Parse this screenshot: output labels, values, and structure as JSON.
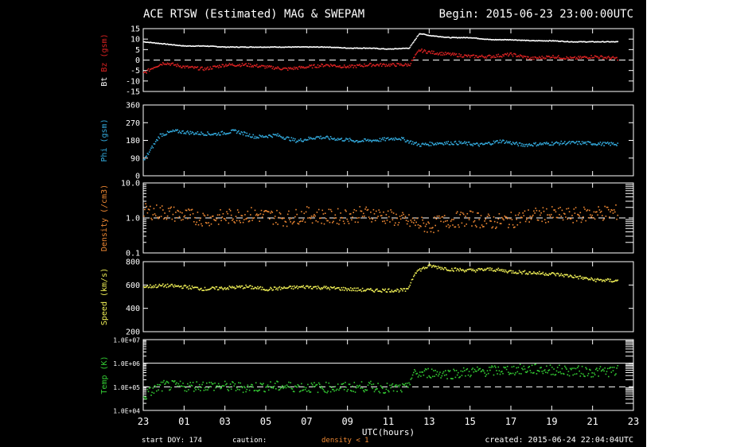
{
  "header": {
    "title": "ACE RTSW (Estimated) MAG & SWEPAM",
    "begin": "Begin: 2015-06-23 23:00:00UTC"
  },
  "footer": {
    "start_doy": "start DOY: 174",
    "caution": "caution:",
    "density_note": "density < 1",
    "created": "created: 2015-06-24 22:04:04UTC",
    "xlabel": "UTC(hours)"
  },
  "colors": {
    "bt": "#ffffff",
    "bz": "#dd2222",
    "phi": "#33aadd",
    "density": "#ee8833",
    "speed": "#eeee55",
    "temp": "#33cc33",
    "axes": "#ffffff",
    "background": "#000000"
  },
  "chart_data": {
    "type": "scatter",
    "x_ticks": [
      "23",
      "01",
      "03",
      "05",
      "07",
      "09",
      "11",
      "13",
      "15",
      "17",
      "19",
      "21",
      "23"
    ],
    "x_range_hours": [
      0,
      24
    ],
    "panels": [
      {
        "id": "bt-bz",
        "ylabel_parts": [
          "Bt",
          "Bz",
          "(gsm)"
        ],
        "ytick_labels": [
          "15",
          "10",
          "5",
          "0",
          "-5",
          "-10",
          "-15"
        ],
        "ylim": [
          -15,
          15
        ],
        "scale": "linear",
        "dashed_at": 0,
        "series": [
          {
            "name": "Bt",
            "color": "#ffffff",
            "x": [
              0,
              1,
              2,
              3,
              4,
              5,
              6,
              7,
              8,
              9,
              10,
              11,
              12,
              13,
              13.5,
              14,
              15,
              16,
              17,
              18,
              19,
              20,
              21,
              22,
              23.2
            ],
            "y": [
              9,
              8,
              7,
              7,
              6.5,
              6.5,
              6.5,
              6.5,
              6.5,
              6.5,
              6,
              6,
              5.5,
              6,
              13,
              12,
              11,
              11,
              10,
              10,
              9.5,
              9.5,
              9,
              9,
              9
            ]
          },
          {
            "name": "Bz",
            "color": "#dd2222",
            "x": [
              0,
              0.5,
              1,
              2,
              3,
              4,
              5,
              6,
              7,
              8,
              9,
              10,
              11,
              12,
              13,
              13.5,
              14,
              15,
              16,
              17,
              18,
              19,
              20,
              21,
              22,
              23.2
            ],
            "y": [
              -6,
              -3,
              -1,
              -3,
              -4,
              -2,
              -2,
              -3,
              -4,
              -3,
              -2,
              -3,
              -2,
              -2,
              -2,
              5,
              4,
              3,
              2,
              2,
              3,
              1,
              2,
              1,
              2,
              1
            ]
          }
        ]
      },
      {
        "id": "phi",
        "ylabel_parts": [
          "Phi (gsm)"
        ],
        "ytick_labels": [
          "360",
          "270",
          "180",
          "90",
          "0"
        ],
        "ylim": [
          0,
          360
        ],
        "scale": "linear",
        "series": [
          {
            "name": "Phi",
            "color": "#33aadd",
            "x": [
              0,
              0.3,
              0.8,
              1.5,
              2.5,
              3.5,
              4.5,
              5.5,
              6.5,
              7.5,
              8.5,
              9.5,
              10.5,
              11.5,
              12.5,
              13.5,
              14.5,
              15.5,
              16.5,
              17.5,
              18.5,
              19.5,
              20.5,
              21.5,
              22.5,
              23.2
            ],
            "y": [
              80,
              130,
              210,
              230,
              220,
              215,
              230,
              200,
              210,
              180,
              200,
              190,
              180,
              185,
              195,
              160,
              170,
              170,
              160,
              180,
              160,
              165,
              170,
              170,
              165,
              165
            ]
          }
        ]
      },
      {
        "id": "density",
        "ylabel_parts": [
          "Density (/cm3)"
        ],
        "ytick_labels": [
          "10.0",
          "1.0",
          "0.1"
        ],
        "ylim": [
          0.1,
          10
        ],
        "scale": "log",
        "dashed_at": 1,
        "series": [
          {
            "name": "Density",
            "color": "#ee8833",
            "x": [
              0,
              1,
              2,
              3,
              4,
              5,
              6,
              7,
              8,
              9,
              10,
              11,
              12,
              13,
              14,
              15,
              16,
              17,
              18,
              19,
              20,
              21,
              22,
              23.2
            ],
            "y": [
              1.6,
              1.5,
              1.2,
              1.0,
              1.1,
              1.3,
              1.2,
              1.0,
              1.3,
              1.1,
              1.2,
              1.4,
              1.1,
              0.8,
              0.6,
              0.9,
              1.0,
              0.8,
              0.9,
              1.2,
              1.3,
              1.2,
              1.4,
              1.5
            ]
          }
        ]
      },
      {
        "id": "speed",
        "ylabel_parts": [
          "Speed (km/s)"
        ],
        "ytick_labels": [
          "800",
          "600",
          "400",
          "200"
        ],
        "ylim": [
          200,
          800
        ],
        "scale": "linear",
        "series": [
          {
            "name": "Speed",
            "color": "#eeee55",
            "x": [
              0,
              1,
              2,
              3,
              4,
              5,
              6,
              7,
              8,
              9,
              10,
              11,
              12,
              12.9,
              13.3,
              14,
              15,
              16,
              17,
              18,
              19,
              20,
              21,
              22,
              23.2
            ],
            "y": [
              590,
              600,
              590,
              570,
              580,
              590,
              570,
              580,
              590,
              580,
              570,
              560,
              560,
              560,
              720,
              770,
              740,
              730,
              740,
              720,
              710,
              700,
              680,
              650,
              640
            ]
          }
        ]
      },
      {
        "id": "temp",
        "ylabel_parts": [
          "Temp (K)"
        ],
        "ytick_labels": [
          "1.0E+07",
          "1.0E+06",
          "1.0E+05",
          "1.0E+04"
        ],
        "ylim": [
          10000,
          10000000
        ],
        "scale": "log",
        "dashed_at": 100000,
        "series": [
          {
            "name": "Temp",
            "color": "#33cc33",
            "x": [
              0,
              0.5,
              1,
              2,
              3,
              4,
              5,
              6,
              7,
              8,
              9,
              10,
              11,
              12,
              12.9,
              13.2,
              14,
              15,
              16,
              17,
              18,
              19,
              20,
              21,
              22,
              23.2
            ],
            "y": [
              40000,
              80000,
              120000,
              110000,
              120000,
              110000,
              100000,
              110000,
              110000,
              100000,
              100000,
              100000,
              110000,
              90000,
              90000,
              350000,
              420000,
              380000,
              450000,
              500000,
              550000,
              600000,
              550000,
              500000,
              450000,
              500000
            ]
          }
        ]
      }
    ]
  }
}
